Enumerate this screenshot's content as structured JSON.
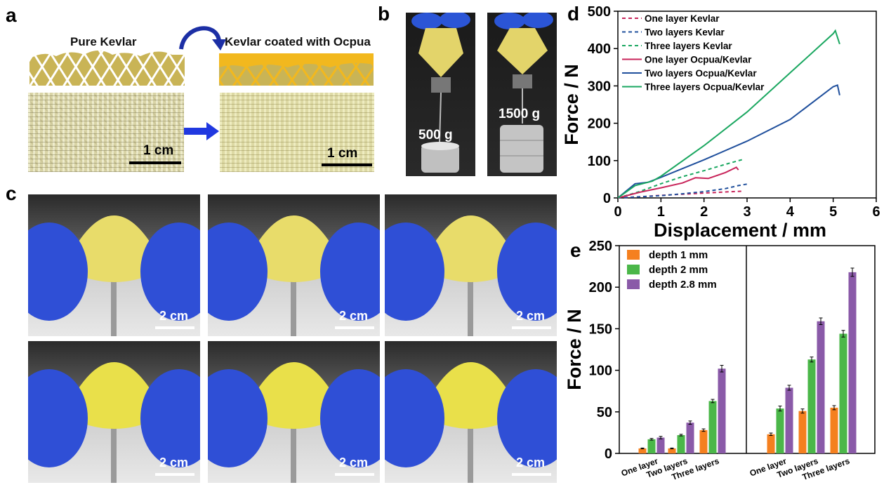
{
  "panels": {
    "a": "a",
    "b": "b",
    "c": "c",
    "d": "d",
    "e": "e"
  },
  "panel_a": {
    "title_left": "Pure Kevlar",
    "title_right": "Kevlar coated with Ocpua",
    "scale_left": "1 cm",
    "scale_right": "1 cm"
  },
  "panel_b": {
    "weight_left": "500 g",
    "weight_right": "1500 g"
  },
  "panel_c": {
    "scales": [
      "2 cm",
      "2 cm",
      "2 cm",
      "2 cm",
      "2 cm",
      "2 cm"
    ]
  },
  "colors": {
    "red": "#c8245a",
    "blue": "#1f4f9c",
    "green": "#1aa760",
    "orange": "#f5801f",
    "green_bar": "#4bb749",
    "purple": "#8a5aa8"
  },
  "chart_data": [
    {
      "type": "line",
      "xlabel": "Displacement / mm",
      "ylabel": "Force / N",
      "xlim": [
        0,
        6
      ],
      "ylim": [
        0,
        500
      ],
      "xticks": [
        "0",
        "1",
        "2",
        "3",
        "4",
        "5",
        "6"
      ],
      "yticks": [
        "0",
        "100",
        "200",
        "300",
        "400",
        "500"
      ],
      "legend_position": "top-left",
      "series": [
        {
          "name": "One layer Kevlar",
          "style": "dashed",
          "color": "#c8245a",
          "points": [
            [
              0,
              0
            ],
            [
              0.5,
              3
            ],
            [
              1,
              7
            ],
            [
              1.5,
              10
            ],
            [
              2,
              13
            ],
            [
              2.5,
              16
            ],
            [
              2.9,
              18
            ]
          ]
        },
        {
          "name": "Two layers Kevlar",
          "style": "dashed",
          "color": "#1f4f9c",
          "points": [
            [
              0,
              0
            ],
            [
              0.5,
              3
            ],
            [
              1,
              6
            ],
            [
              1.5,
              11
            ],
            [
              2,
              17
            ],
            [
              2.5,
              25
            ],
            [
              2.8,
              33
            ],
            [
              3.0,
              37
            ]
          ]
        },
        {
          "name": "Three layers Kevlar",
          "style": "dashed",
          "color": "#1aa760",
          "points": [
            [
              0,
              0
            ],
            [
              0.5,
              17
            ],
            [
              1,
              38
            ],
            [
              1.5,
              57
            ],
            [
              2,
              73
            ],
            [
              2.5,
              90
            ],
            [
              2.9,
              103
            ]
          ]
        },
        {
          "name": "One layer Ocpua/Kevlar",
          "style": "solid",
          "color": "#c8245a",
          "points": [
            [
              0,
              0
            ],
            [
              0.5,
              15
            ],
            [
              1,
              27
            ],
            [
              1.5,
              40
            ],
            [
              1.8,
              54
            ],
            [
              2.1,
              52
            ],
            [
              2.5,
              68
            ],
            [
              2.75,
              82
            ],
            [
              2.8,
              75
            ]
          ]
        },
        {
          "name": "Two layers Ocpua/Kevlar",
          "style": "solid",
          "color": "#1f4f9c",
          "points": [
            [
              0,
              0
            ],
            [
              0.4,
              38
            ],
            [
              0.7,
              42
            ],
            [
              1,
              55
            ],
            [
              2,
              102
            ],
            [
              3,
              152
            ],
            [
              4,
              210
            ],
            [
              5,
              298
            ],
            [
              5.1,
              302
            ],
            [
              5.15,
              275
            ]
          ]
        },
        {
          "name": "Three layers Ocpua/Kevlar",
          "style": "solid",
          "color": "#1aa760",
          "points": [
            [
              0,
              0
            ],
            [
              0.4,
              33
            ],
            [
              0.8,
              45
            ],
            [
              1,
              58
            ],
            [
              2,
              140
            ],
            [
              3,
              230
            ],
            [
              4,
              335
            ],
            [
              5,
              440
            ],
            [
              5.05,
              448
            ],
            [
              5.15,
              412
            ]
          ]
        }
      ]
    },
    {
      "type": "bar",
      "ylabel": "Force / N",
      "ylim": [
        0,
        250
      ],
      "yticks": [
        "0",
        "50",
        "100",
        "150",
        "200",
        "250"
      ],
      "categories": [
        "One layer",
        "Two layers",
        "Three layers",
        "One layer",
        "Two layers",
        "Three layers"
      ],
      "legend_position": "top-left",
      "series": [
        {
          "name": "depth 1 mm",
          "color": "#f5801f",
          "values": [
            6,
            6,
            28,
            23,
            51,
            55
          ],
          "errors": [
            0.5,
            0.5,
            1.5,
            1.5,
            2.5,
            2.5
          ]
        },
        {
          "name": "depth 2 mm",
          "color": "#4bb749",
          "values": [
            17,
            22,
            63,
            54,
            113,
            144
          ],
          "errors": [
            1,
            1,
            2,
            3,
            3,
            4
          ]
        },
        {
          "name": "depth 2.8 mm",
          "color": "#8a5aa8",
          "values": [
            19,
            37,
            102,
            79,
            159,
            218
          ],
          "errors": [
            1.5,
            2,
            4,
            3,
            4,
            5
          ]
        }
      ]
    }
  ]
}
